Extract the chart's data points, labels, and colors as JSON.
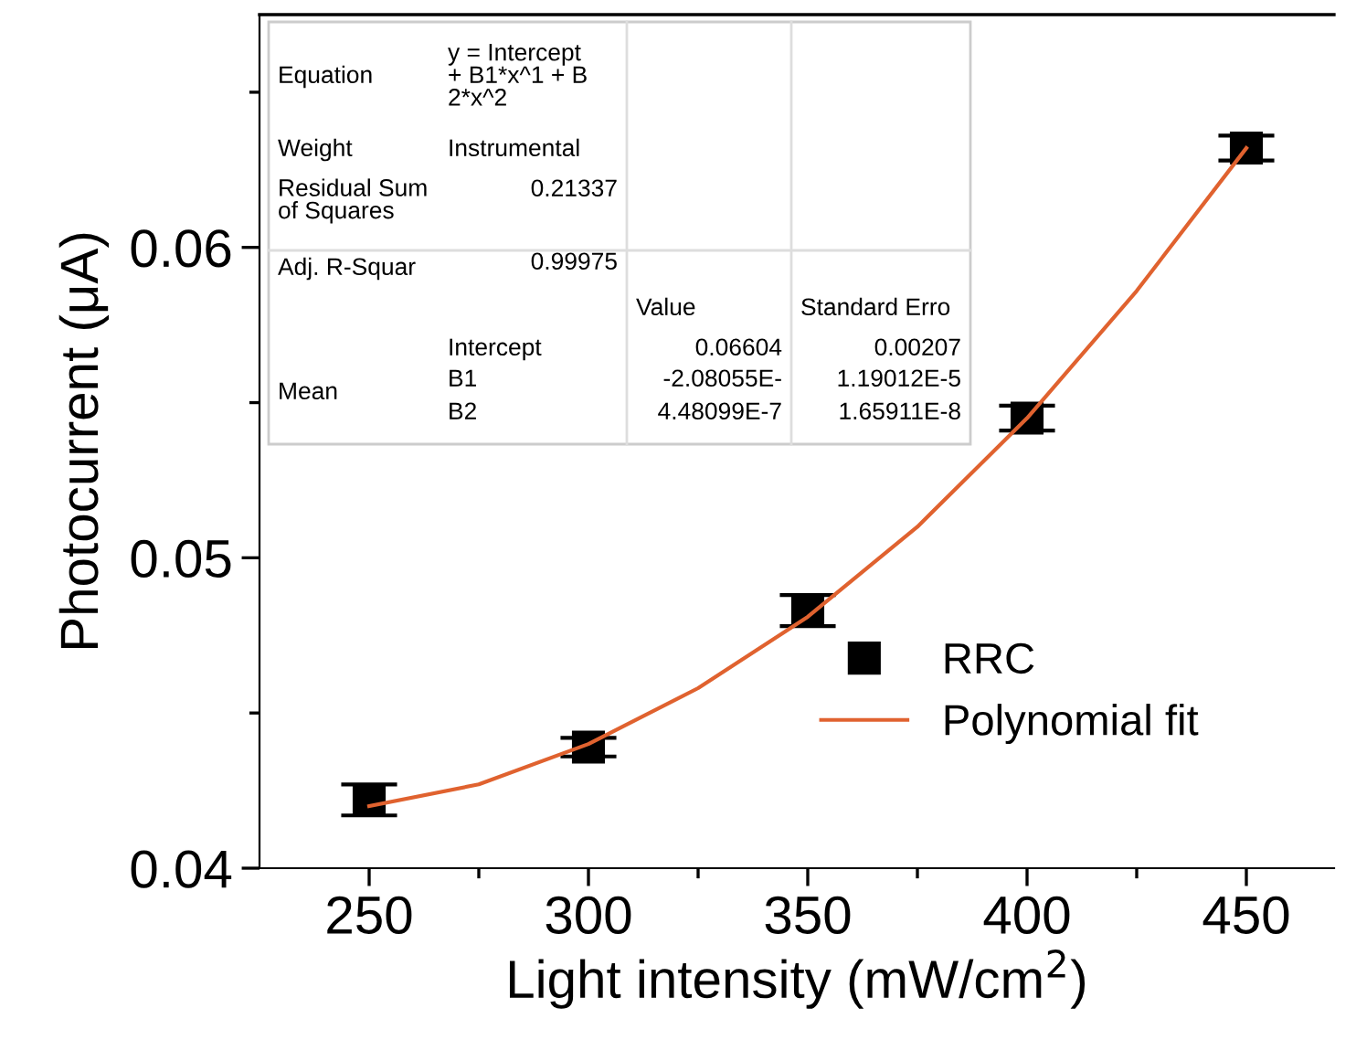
{
  "chart_data": {
    "type": "scatter",
    "xlabel": "Light intensity (mW/cm$^{2}$)",
    "ylabel": "Photocurrent (μA)",
    "xlim": [
      225,
      470
    ],
    "xticks": [
      250,
      {
        "value": 275,
        "label": null
      },
      300,
      {
        "value": 325,
        "label": null
      },
      350,
      {
        "value": 375,
        "label": null
      },
      400,
      {
        "value": 425,
        "label": null
      },
      450
    ],
    "ylim": [
      0.04,
      0.0675
    ],
    "yticks": [
      0.04,
      {
        "value": 0.045,
        "label": null
      },
      0.05,
      {
        "value": 0.055,
        "label": null
      },
      0.06,
      {
        "value": 0.065,
        "label": null
      }
    ],
    "series": [
      {
        "name": "RRC",
        "color": "#000000",
        "marker": "square",
        "x": [
          250,
          300,
          350,
          400,
          450
        ],
        "values": [
          0.0422,
          0.0439,
          0.0483,
          0.0545,
          0.0632
        ],
        "errors": [
          0.0005,
          0.0003,
          0.0005,
          0.0004,
          0.0004
        ]
      },
      {
        "name": "Polynomial fit",
        "type": "line",
        "color": "#e0622f",
        "marker": "none",
        "line_style": "solid",
        "x": [
          250,
          275,
          300,
          325,
          350,
          375,
          400,
          425,
          450
        ],
        "values": [
          0.042,
          0.0427,
          0.044,
          0.0458,
          0.0481,
          0.051,
          0.0545,
          0.0586,
          0.0632
        ]
      }
    ],
    "legend": "bottom right",
    "grid": false,
    "annotations": [
      "Equation",
      "y = Intercept\n+ B1*x^1 + B\n2*x^2",
      "Weight",
      "Instrumental",
      "Residual Sum\nof Squares",
      "0.21337",
      "Adj. R-Squar",
      "0.99975",
      "Value",
      "Standard Erro",
      "Intercept",
      "0.06604",
      "0.00207",
      "Mean",
      "B1",
      "-2.08055E-",
      "1.19012E-5",
      "B2",
      "4.48099E-7",
      "1.65911E-8"
    ]
  }
}
